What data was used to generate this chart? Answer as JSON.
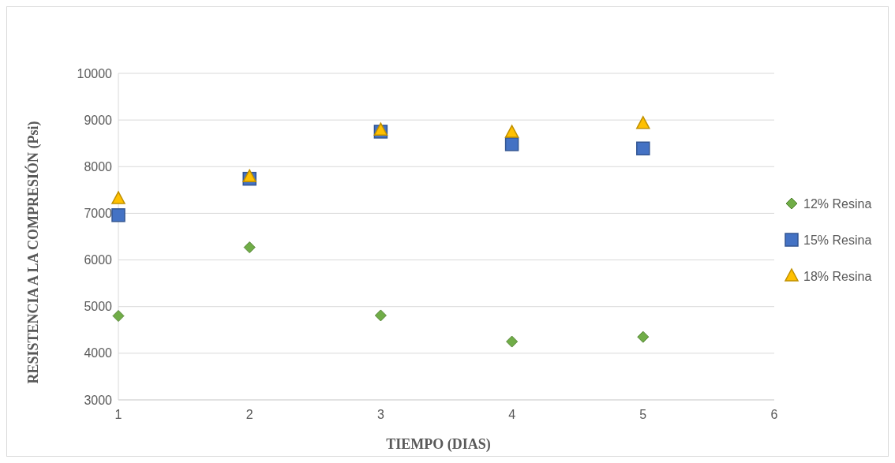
{
  "chart_data": {
    "type": "scatter",
    "xlabel": "TIEMPO (DIAS)",
    "ylabel": "RESISTENCIA A LA COMPRESIÓN (Psi)",
    "x": [
      1,
      2,
      3,
      4,
      5
    ],
    "xlim": [
      1,
      6
    ],
    "xticks": [
      1,
      2,
      3,
      4,
      5,
      6
    ],
    "ylim": [
      3000,
      10000
    ],
    "yticks": [
      3000,
      4000,
      5000,
      6000,
      7000,
      8000,
      9000,
      10000
    ],
    "grid": "y",
    "legend": "right",
    "series": [
      {
        "name": "12% Resina",
        "color": "#70ad47",
        "marker": "diamond",
        "values": [
          4800,
          6270,
          4810,
          4250,
          4350
        ]
      },
      {
        "name": "15% Resina",
        "color": "#4472c4",
        "marker": "square",
        "values": [
          6960,
          7740,
          8750,
          8480,
          8390
        ]
      },
      {
        "name": "18% Resina",
        "color": "#ffc000",
        "marker": "triangle",
        "values": [
          7310,
          7780,
          8780,
          8730,
          8920
        ]
      }
    ]
  }
}
